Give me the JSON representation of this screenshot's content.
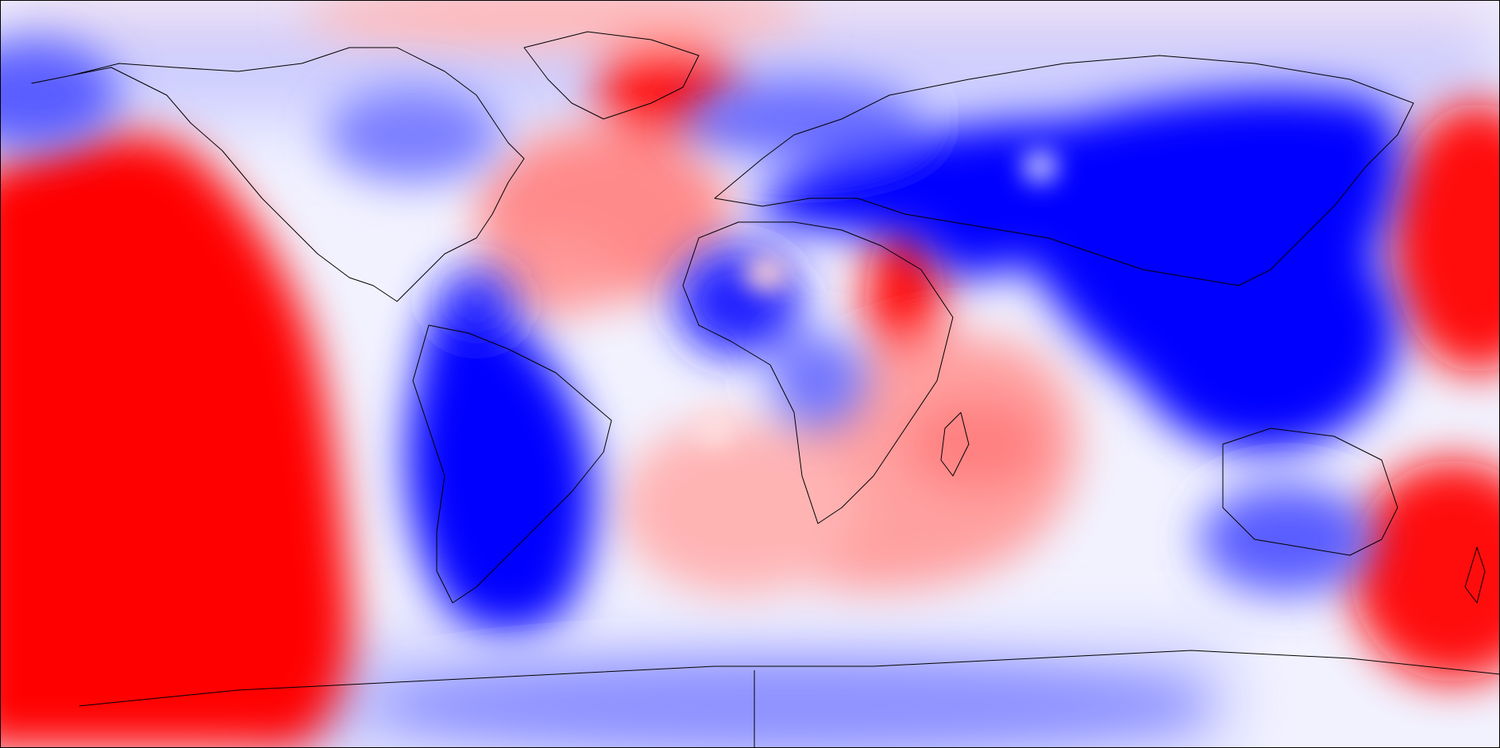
{
  "map": {
    "projection": "equirectangular",
    "center_longitude": -180,
    "color_scale": {
      "negative": "#0000ff",
      "neutral": "#ffffff",
      "positive": "#ff0000",
      "levels": 12
    },
    "coastline_color": "#000000",
    "anomaly_regions": [
      {
        "name": "pacific-positive-west",
        "sign": 1,
        "strength": 1.0
      },
      {
        "name": "pacific-positive-central",
        "sign": 1,
        "strength": 1.0
      },
      {
        "name": "greenland-positive",
        "sign": 1,
        "strength": 0.9
      },
      {
        "name": "north-atlantic-positive",
        "sign": 1,
        "strength": 0.55
      },
      {
        "name": "east-africa-positive",
        "sign": 1,
        "strength": 0.9
      },
      {
        "name": "south-indian-ocean-positive",
        "sign": 1,
        "strength": 0.5
      },
      {
        "name": "south-atlantic-positive",
        "sign": 1,
        "strength": 0.45
      },
      {
        "name": "east-pacific-positive",
        "sign": 1,
        "strength": 0.85
      },
      {
        "name": "new-zealand-positive",
        "sign": 1,
        "strength": 0.95
      },
      {
        "name": "arctic-positive",
        "sign": 1,
        "strength": 0.35
      },
      {
        "name": "south-america-negative",
        "sign": -1,
        "strength": 1.0
      },
      {
        "name": "eurasia-negative",
        "sign": -1,
        "strength": 1.0
      },
      {
        "name": "maritime-continent-negative",
        "sign": -1,
        "strength": 1.0
      },
      {
        "name": "west-africa-negative",
        "sign": -1,
        "strength": 0.8
      },
      {
        "name": "canada-negative",
        "sign": -1,
        "strength": 0.55
      },
      {
        "name": "north-pacific-negative",
        "sign": -1,
        "strength": 0.55
      },
      {
        "name": "antarctic-negative",
        "sign": -1,
        "strength": 0.4
      },
      {
        "name": "australia-south-negative",
        "sign": -1,
        "strength": 0.55
      }
    ]
  }
}
